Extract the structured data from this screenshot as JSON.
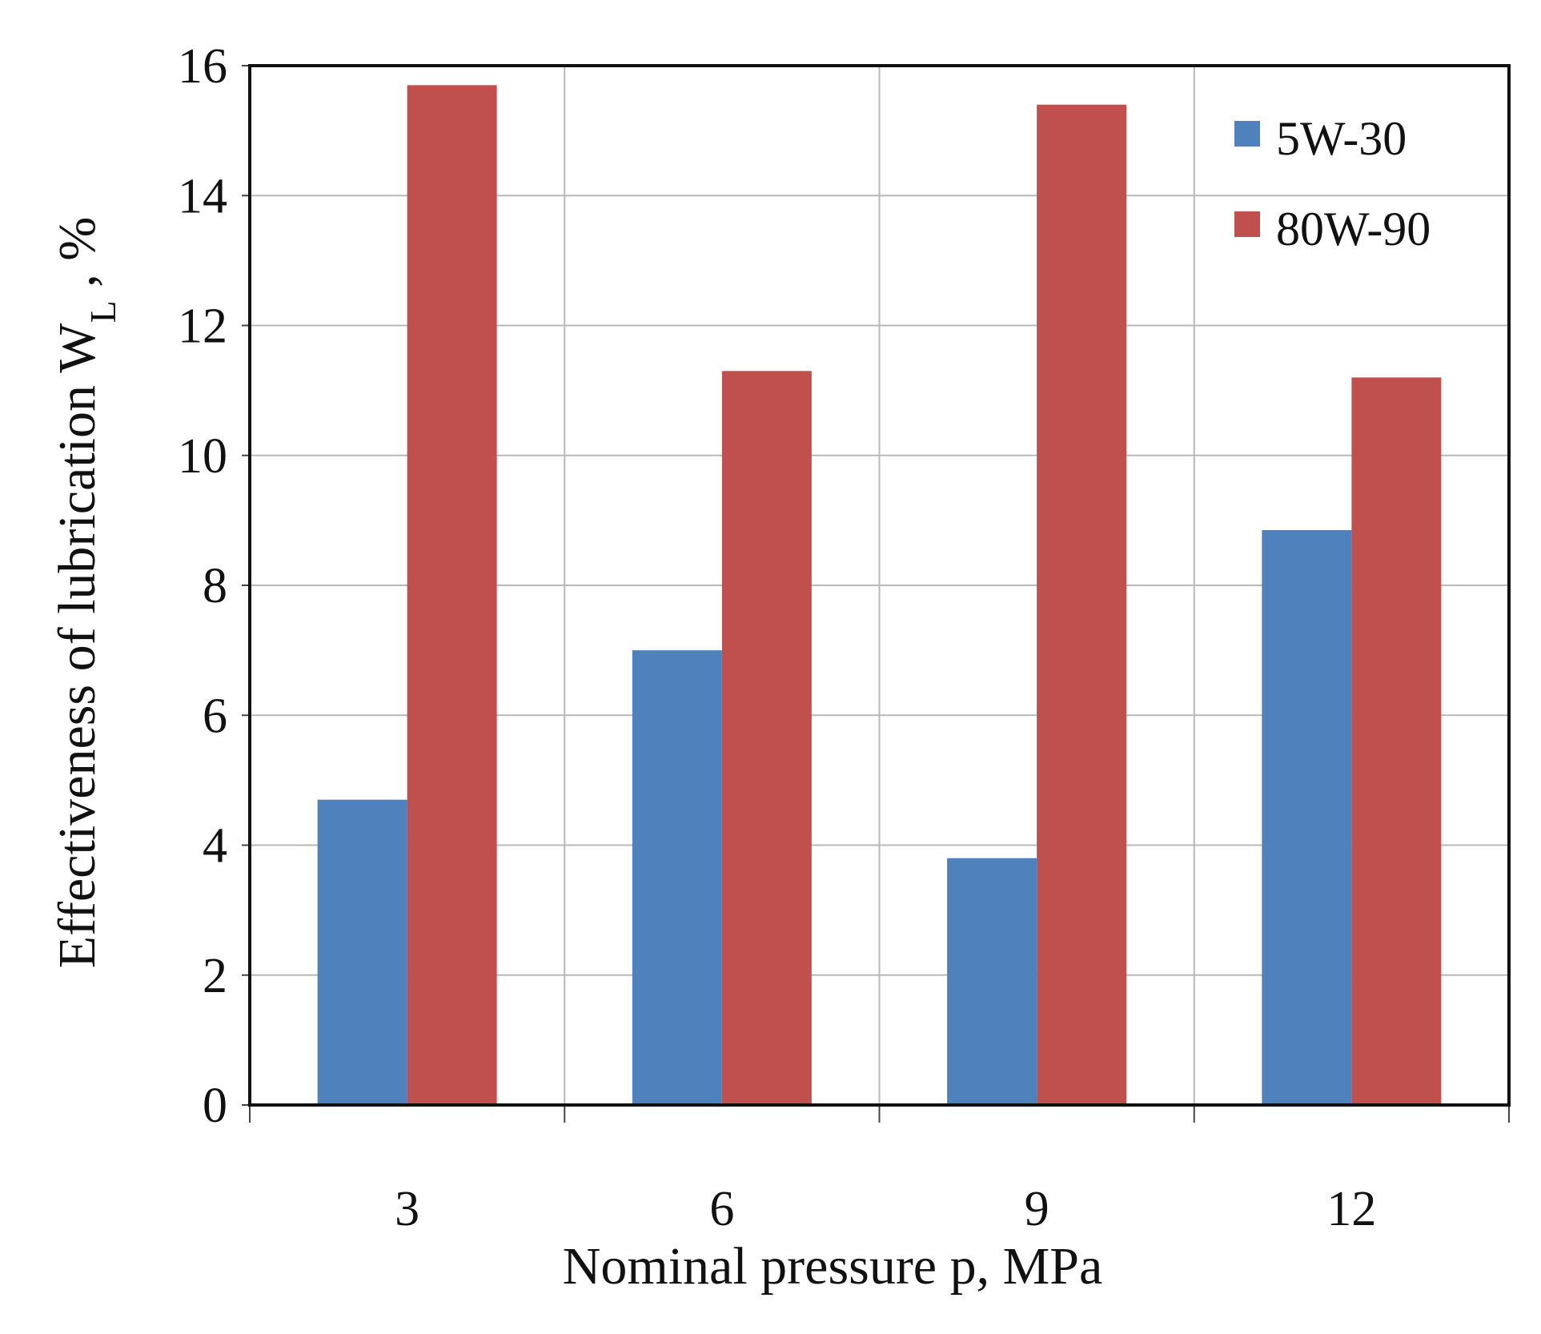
{
  "chart_data": {
    "type": "bar",
    "categories": [
      "3",
      "6",
      "9",
      "12"
    ],
    "series": [
      {
        "name": "5W-30",
        "color": "#4F81BD",
        "values": [
          4.7,
          7.0,
          3.8,
          8.85
        ]
      },
      {
        "name": "80W-90",
        "color": "#C0504D",
        "values": [
          15.7,
          11.3,
          15.4,
          11.2
        ]
      }
    ],
    "xlabel": "Nominal pressure p, MPa",
    "ylabel": {
      "main": "Effectiveness of lubrication W",
      "subscript": "L",
      "suffix": " , %"
    },
    "ylim": [
      0,
      16
    ],
    "yticks": [
      "0",
      "2",
      "4",
      "6",
      "8",
      "10",
      "12",
      "14",
      "16"
    ],
    "grid": true,
    "legend_position": "top-right"
  }
}
